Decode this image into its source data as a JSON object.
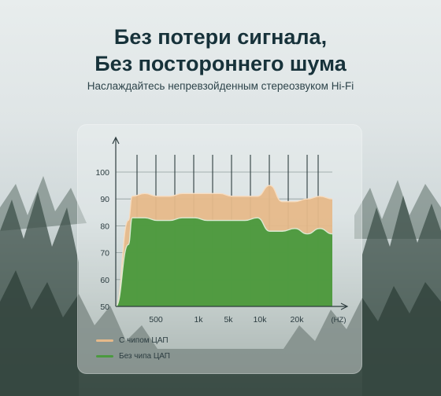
{
  "header": {
    "title_line1": "Без потери сигнала,",
    "title_line2": "Без постороннего шума",
    "subtitle": "Наслаждайтесь непревзойденным стереозвуком Hi-Fi"
  },
  "chart_data": {
    "type": "area",
    "y_ticks": [
      100,
      90,
      80,
      70,
      60,
      50
    ],
    "ylim": [
      50,
      100
    ],
    "x_tick_labels": [
      "500",
      "1k",
      "5k",
      "10k",
      "20k"
    ],
    "x_unit": "(HZ)",
    "grid": true,
    "legend_position": "bottom-left",
    "series": [
      {
        "name": "С чипом ЦАП",
        "color": "#e6b98a",
        "values": [
          50,
          82,
          91,
          92,
          91,
          91,
          92,
          92,
          92,
          92,
          91,
          91,
          91,
          95,
          89,
          89,
          90,
          91,
          90
        ]
      },
      {
        "name": "Без чипа ЦАП",
        "color": "#4b9a3f",
        "values": [
          50,
          73,
          83,
          83,
          82,
          82,
          83,
          83,
          82,
          82,
          82,
          82,
          83,
          78,
          78,
          79,
          77,
          79,
          77
        ]
      }
    ]
  }
}
